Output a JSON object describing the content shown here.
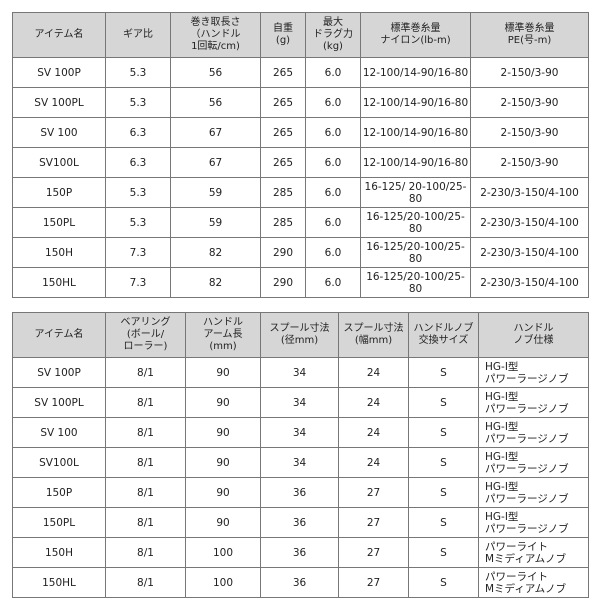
{
  "tables": [
    {
      "header": [
        [
          "アイテム名"
        ],
        [
          "ギア比"
        ],
        [
          "巻き取長さ",
          "（ハンドル",
          "1回転/cm)"
        ],
        [
          "自重",
          "(g)"
        ],
        [
          "最大",
          "ドラグ力",
          "(kg)"
        ],
        [
          "標準巻糸量",
          "ナイロン(lb-m)"
        ],
        [
          "標準巻糸量",
          "PE(号-m)"
        ]
      ],
      "rows": [
        [
          "SV 100P",
          "5.3",
          "56",
          "265",
          "6.0",
          "12-100/14-90/16-80",
          "2-150/3-90"
        ],
        [
          "SV 100PL",
          "5.3",
          "56",
          "265",
          "6.0",
          "12-100/14-90/16-80",
          "2-150/3-90"
        ],
        [
          "SV 100",
          "6.3",
          "67",
          "265",
          "6.0",
          "12-100/14-90/16-80",
          "2-150/3-90"
        ],
        [
          "SV100L",
          "6.3",
          "67",
          "265",
          "6.0",
          "12-100/14-90/16-80",
          "2-150/3-90"
        ],
        [
          "150P",
          "5.3",
          "59",
          "285",
          "6.0",
          "16-125/ 20-100/25-80",
          "2-230/3-150/4-100"
        ],
        [
          "150PL",
          "5.3",
          "59",
          "285",
          "6.0",
          "16-125/20-100/25-80",
          "2-230/3-150/4-100"
        ],
        [
          "150H",
          "7.3",
          "82",
          "290",
          "6.0",
          "16-125/20-100/25-80",
          "2-230/3-150/4-100"
        ],
        [
          "150HL",
          "7.3",
          "82",
          "290",
          "6.0",
          "16-125/20-100/25-80",
          "2-230/3-150/4-100"
        ]
      ]
    },
    {
      "header": [
        [
          "アイテム名"
        ],
        [
          "ベアリング",
          "(ボール/",
          "ローラー)"
        ],
        [
          "ハンドル",
          "アーム長",
          "(mm)"
        ],
        [
          "スプール寸法",
          "(径mm)"
        ],
        [
          "スプール寸法",
          "(幅mm)"
        ],
        [
          "ハンドルノブ",
          "交換サイズ"
        ],
        [
          "ハンドル",
          "ノブ仕様"
        ]
      ],
      "rows": [
        [
          "SV 100P",
          "8/1",
          "90",
          "34",
          "24",
          "S",
          [
            "HG-I型",
            "パワーラージノブ"
          ]
        ],
        [
          "SV 100PL",
          "8/1",
          "90",
          "34",
          "24",
          "S",
          [
            "HG-I型",
            "パワーラージノブ"
          ]
        ],
        [
          "SV 100",
          "8/1",
          "90",
          "34",
          "24",
          "S",
          [
            "HG-I型",
            "パワーラージノブ"
          ]
        ],
        [
          "SV100L",
          "8/1",
          "90",
          "34",
          "24",
          "S",
          [
            "HG-I型",
            "パワーラージノブ"
          ]
        ],
        [
          "150P",
          "8/1",
          "90",
          "36",
          "27",
          "S",
          [
            "HG-I型",
            "パワーラージノブ"
          ]
        ],
        [
          "150PL",
          "8/1",
          "90",
          "36",
          "27",
          "S",
          [
            "HG-I型",
            "パワーラージノブ"
          ]
        ],
        [
          "150H",
          "8/1",
          "100",
          "36",
          "27",
          "S",
          [
            "パワーライト",
            "Mミディアムノブ"
          ]
        ],
        [
          "150HL",
          "8/1",
          "100",
          "36",
          "27",
          "S",
          [
            "パワーライト",
            "Mミディアムノブ"
          ]
        ]
      ]
    }
  ]
}
